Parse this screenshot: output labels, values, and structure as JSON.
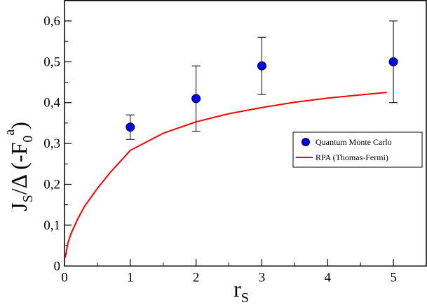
{
  "chart_data": {
    "type": "scatter",
    "xlim": [
      0,
      5.5
    ],
    "ylim": [
      0,
      0.65
    ],
    "x_ticks": [
      0,
      1,
      2,
      3,
      4,
      5
    ],
    "y_ticks": [
      0,
      0.1,
      0.2,
      0.3,
      0.4,
      0.5,
      0.6
    ],
    "x_tick_labels": [
      "0",
      "1",
      "2",
      "3",
      "4",
      "5"
    ],
    "y_tick_labels": [
      "0",
      "0,1",
      "0,2",
      "0,3",
      "0,4",
      "0,5",
      "0,6"
    ],
    "xlabel": {
      "main": "r",
      "sub": "S"
    },
    "ylabel": {
      "main": "J",
      "sub1": "S",
      "slash_delta": "/Δ  (-F",
      "sub2": "0",
      "sup": "a",
      "close": ")"
    },
    "grid": false,
    "legend_position": "right",
    "series": [
      {
        "name": "Quantum Monte Carlo",
        "kind": "points_with_errorbars",
        "color": "#0000ff",
        "points": [
          {
            "x": 1,
            "y": 0.34,
            "err_low": 0.31,
            "err_high": 0.37
          },
          {
            "x": 2,
            "y": 0.41,
            "err_low": 0.33,
            "err_high": 0.49
          },
          {
            "x": 3,
            "y": 0.49,
            "err_low": 0.42,
            "err_high": 0.56
          },
          {
            "x": 5,
            "y": 0.5,
            "err_low": 0.4,
            "err_high": 0.6
          }
        ]
      },
      {
        "name": "RPA (Thomas-Fermi)",
        "kind": "line",
        "color": "#ff0000",
        "x": [
          0.01,
          0.05,
          0.1,
          0.2,
          0.3,
          0.5,
          0.7,
          1.0,
          1.5,
          2.0,
          2.5,
          3.0,
          3.5,
          4.0,
          4.5,
          4.9
        ],
        "y": [
          0.02,
          0.055,
          0.08,
          0.115,
          0.145,
          0.19,
          0.23,
          0.283,
          0.325,
          0.353,
          0.373,
          0.388,
          0.401,
          0.411,
          0.419,
          0.425
        ]
      }
    ]
  }
}
